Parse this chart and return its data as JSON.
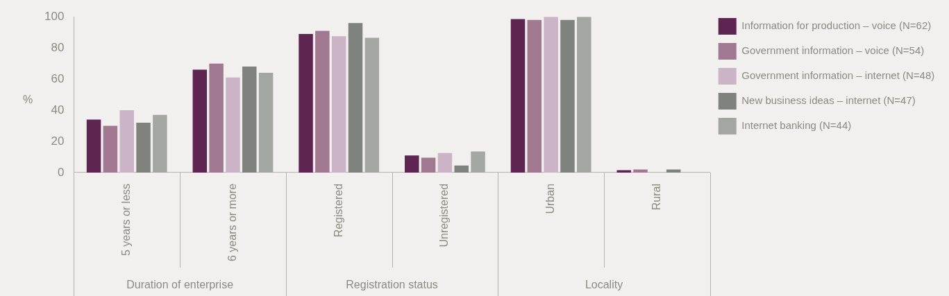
{
  "chart_data": {
    "type": "bar",
    "ylabel": "%",
    "categories": [
      "5 years or less",
      "6 years or more",
      "Registered",
      "Unregistered",
      "Urban",
      "Rural"
    ],
    "annotations": [
      "Duration of enterprise",
      "Registration status",
      "Locality"
    ],
    "series": [
      {
        "name": "Information for production – voice (N=62)",
        "color": "#5e2452",
        "values": [
          34,
          66,
          89,
          11,
          98.5,
          1.5
        ]
      },
      {
        "name": "Government information – voice (N=54)",
        "color": "#a07890",
        "values": [
          30,
          70,
          91,
          9.5,
          98,
          2
        ]
      },
      {
        "name": "Government information – internet (N=48)",
        "color": "#cab4c5",
        "values": [
          40,
          61,
          87.5,
          12.5,
          100,
          0
        ]
      },
      {
        "name": "New business ideas – internet (N=47)",
        "color": "#80827d",
        "values": [
          32,
          68,
          96,
          4.5,
          98,
          2
        ]
      },
      {
        "name": "Internet banking (N=44)",
        "color": "#a4a6a2",
        "values": [
          37,
          64,
          86.5,
          13.5,
          100,
          0
        ]
      }
    ],
    "ylim": [
      0,
      100
    ],
    "yticks": [
      0,
      20,
      40,
      60,
      80,
      100
    ],
    "grid": false,
    "legend": "top right"
  }
}
